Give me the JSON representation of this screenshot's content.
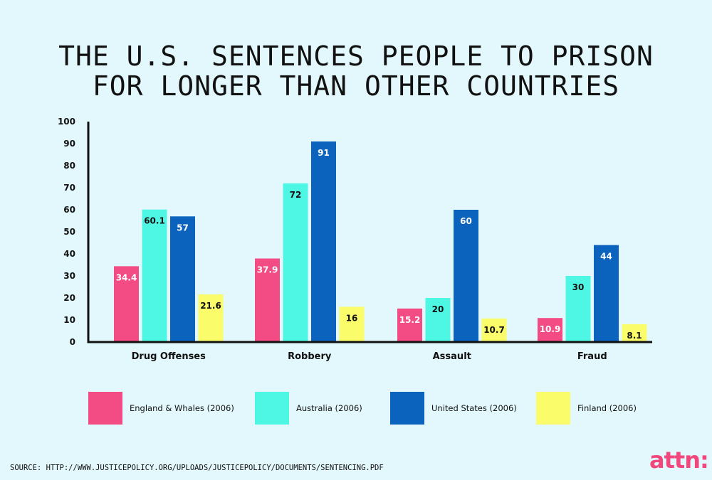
{
  "title_lines": [
    "THE U.S. SENTENCES PEOPLE TO PRISON",
    "FOR LONGER THAN OTHER COUNTRIES"
  ],
  "chart_data": {
    "type": "bar",
    "title": "THE U.S. SENTENCES PEOPLE TO PRISON FOR LONGER THAN OTHER COUNTRIES",
    "xlabel": "",
    "ylabel": "",
    "categories": [
      "Drug Offenses",
      "Robbery",
      "Assault",
      "Fraud"
    ],
    "series": [
      {
        "name": "England & Whales (2006)",
        "color": "#f34b83",
        "values": [
          34.4,
          37.9,
          15.2,
          10.9
        ],
        "labels": [
          "34.4",
          "37.9",
          "15.2",
          "10.9"
        ]
      },
      {
        "name": "Australia (2006)",
        "color": "#4ef7e3",
        "values": [
          60.1,
          72,
          20,
          30
        ],
        "labels": [
          "60.1",
          "72",
          "20",
          "30"
        ]
      },
      {
        "name": "United States (2006)",
        "color": "#0b63bd",
        "values": [
          57,
          91,
          60,
          44
        ],
        "labels": [
          "57",
          "91",
          "60",
          "44"
        ]
      },
      {
        "name": "Finland (2006)",
        "color": "#fafc6a",
        "values": [
          21.6,
          16,
          10.7,
          8.1
        ],
        "labels": [
          "21.6",
          "16",
          "10.7",
          "8.1"
        ]
      }
    ],
    "ylim": [
      0,
      100
    ],
    "yticks": [
      "0",
      "10",
      "20",
      "30",
      "40",
      "50",
      "60",
      "70",
      "80",
      "90",
      "100"
    ],
    "grid": false,
    "legend_position": "bottom"
  },
  "source": "SOURCE: HTTP://WWW.JUSTICEPOLICY.ORG/UPLOADS/JUSTICEPOLICY/DOCUMENTS/SENTENCING.PDF",
  "logo_text": "attn:",
  "colors": {
    "background": "#e3f8fc",
    "brand": "#f0477c"
  }
}
